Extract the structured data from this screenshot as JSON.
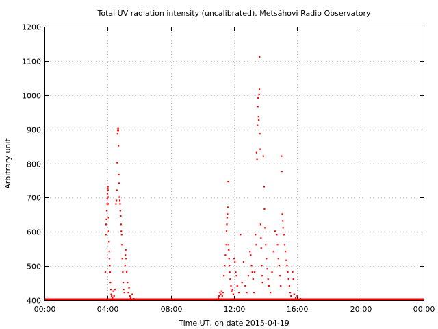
{
  "chart_data": {
    "type": "scatter",
    "title": "Total UV radiation intensity (uncalibrated). Metsähovi Radio Observatory",
    "xlabel": "Time UT, on date 2015-04-19",
    "ylabel": "Arbitrary unit",
    "xlim": [
      0,
      24
    ],
    "ylim": [
      400,
      1200
    ],
    "x_ticks": [
      {
        "value": 0,
        "label": "00:00"
      },
      {
        "value": 4,
        "label": "04:00"
      },
      {
        "value": 8,
        "label": "08:00"
      },
      {
        "value": 12,
        "label": "12:00"
      },
      {
        "value": 16,
        "label": "16:00"
      },
      {
        "value": 20,
        "label": "20:00"
      },
      {
        "value": 24,
        "label": "00:00"
      }
    ],
    "y_ticks": [
      400,
      500,
      600,
      700,
      800,
      900,
      1000,
      1100,
      1200
    ],
    "grid": true,
    "marker_color": "#ff0000",
    "baseline": {
      "value": 400,
      "from": 0,
      "to": 24
    },
    "points": [
      [
        3.85,
        480
      ],
      [
        3.88,
        590
      ],
      [
        3.9,
        620
      ],
      [
        3.92,
        635
      ],
      [
        3.94,
        660
      ],
      [
        3.96,
        680
      ],
      [
        3.97,
        695
      ],
      [
        3.98,
        710
      ],
      [
        4.0,
        725
      ],
      [
        4.01,
        730
      ],
      [
        4.02,
        720
      ],
      [
        4.03,
        700
      ],
      [
        4.04,
        680
      ],
      [
        4.05,
        640
      ],
      [
        4.06,
        600
      ],
      [
        4.08,
        570
      ],
      [
        4.1,
        540
      ],
      [
        4.11,
        520
      ],
      [
        4.13,
        500
      ],
      [
        4.15,
        480
      ],
      [
        4.17,
        450
      ],
      [
        4.2,
        430
      ],
      [
        4.22,
        415
      ],
      [
        4.25,
        410
      ],
      [
        4.3,
        405
      ],
      [
        4.35,
        425
      ],
      [
        4.4,
        410
      ],
      [
        4.45,
        430
      ],
      [
        4.52,
        680
      ],
      [
        4.55,
        690
      ],
      [
        4.58,
        720
      ],
      [
        4.6,
        800
      ],
      [
        4.62,
        885
      ],
      [
        4.64,
        895
      ],
      [
        4.65,
        900
      ],
      [
        4.66,
        900
      ],
      [
        4.67,
        895
      ],
      [
        4.68,
        850
      ],
      [
        4.7,
        765
      ],
      [
        4.72,
        740
      ],
      [
        4.74,
        700
      ],
      [
        4.76,
        690
      ],
      [
        4.78,
        680
      ],
      [
        4.8,
        660
      ],
      [
        4.82,
        645
      ],
      [
        4.84,
        620
      ],
      [
        4.86,
        600
      ],
      [
        4.88,
        590
      ],
      [
        4.9,
        560
      ],
      [
        4.92,
        520
      ],
      [
        4.95,
        480
      ],
      [
        4.98,
        450
      ],
      [
        5.0,
        430
      ],
      [
        5.05,
        420
      ],
      [
        5.1,
        500
      ],
      [
        5.12,
        530
      ],
      [
        5.14,
        545
      ],
      [
        5.16,
        520
      ],
      [
        5.2,
        480
      ],
      [
        5.25,
        450
      ],
      [
        5.3,
        420
      ],
      [
        5.35,
        435
      ],
      [
        5.4,
        410
      ],
      [
        5.45,
        405
      ],
      [
        5.55,
        415
      ],
      [
        5.65,
        402
      ],
      [
        11.0,
        405
      ],
      [
        11.05,
        410
      ],
      [
        11.1,
        420
      ],
      [
        11.15,
        415
      ],
      [
        11.2,
        425
      ],
      [
        11.25,
        410
      ],
      [
        11.3,
        420
      ],
      [
        11.35,
        470
      ],
      [
        11.4,
        500
      ],
      [
        11.45,
        530
      ],
      [
        11.5,
        560
      ],
      [
        11.52,
        600
      ],
      [
        11.54,
        620
      ],
      [
        11.56,
        640
      ],
      [
        11.58,
        650
      ],
      [
        11.6,
        670
      ],
      [
        11.62,
        745
      ],
      [
        11.64,
        560
      ],
      [
        11.66,
        545
      ],
      [
        11.68,
        520
      ],
      [
        11.7,
        500
      ],
      [
        11.72,
        480
      ],
      [
        11.75,
        460
      ],
      [
        11.8,
        440
      ],
      [
        11.85,
        425
      ],
      [
        11.9,
        430
      ],
      [
        11.95,
        415
      ],
      [
        12.0,
        520
      ],
      [
        12.05,
        510
      ],
      [
        12.1,
        480
      ],
      [
        12.15,
        470
      ],
      [
        12.2,
        440
      ],
      [
        12.3,
        420
      ],
      [
        12.4,
        590
      ],
      [
        12.5,
        450
      ],
      [
        12.6,
        510
      ],
      [
        12.7,
        440
      ],
      [
        12.8,
        420
      ],
      [
        12.9,
        470
      ],
      [
        13.0,
        540
      ],
      [
        13.05,
        530
      ],
      [
        13.1,
        500
      ],
      [
        13.15,
        480
      ],
      [
        13.2,
        460
      ],
      [
        13.25,
        420
      ],
      [
        13.3,
        480
      ],
      [
        13.35,
        590
      ],
      [
        13.4,
        560
      ],
      [
        13.42,
        830
      ],
      [
        13.45,
        810
      ],
      [
        13.48,
        910
      ],
      [
        13.5,
        965
      ],
      [
        13.52,
        990
      ],
      [
        13.54,
        935
      ],
      [
        13.56,
        925
      ],
      [
        13.58,
        1000
      ],
      [
        13.6,
        1015
      ],
      [
        13.61,
        1110
      ],
      [
        13.63,
        885
      ],
      [
        13.65,
        840
      ],
      [
        13.68,
        620
      ],
      [
        13.7,
        580
      ],
      [
        13.72,
        550
      ],
      [
        13.75,
        500
      ],
      [
        13.78,
        470
      ],
      [
        13.8,
        450
      ],
      [
        13.85,
        820
      ],
      [
        13.9,
        730
      ],
      [
        13.92,
        665
      ],
      [
        13.95,
        610
      ],
      [
        14.0,
        560
      ],
      [
        14.05,
        520
      ],
      [
        14.1,
        490
      ],
      [
        14.15,
        460
      ],
      [
        14.2,
        440
      ],
      [
        14.3,
        420
      ],
      [
        14.4,
        480
      ],
      [
        14.5,
        540
      ],
      [
        14.6,
        600
      ],
      [
        14.7,
        590
      ],
      [
        14.75,
        560
      ],
      [
        14.8,
        520
      ],
      [
        14.85,
        500
      ],
      [
        14.9,
        470
      ],
      [
        14.95,
        440
      ],
      [
        15.0,
        820
      ],
      [
        15.02,
        775
      ],
      [
        15.05,
        650
      ],
      [
        15.08,
        630
      ],
      [
        15.1,
        610
      ],
      [
        15.15,
        590
      ],
      [
        15.2,
        560
      ],
      [
        15.25,
        540
      ],
      [
        15.3,
        515
      ],
      [
        15.35,
        500
      ],
      [
        15.4,
        480
      ],
      [
        15.45,
        460
      ],
      [
        15.5,
        440
      ],
      [
        15.55,
        420
      ],
      [
        15.6,
        410
      ],
      [
        15.7,
        480
      ],
      [
        15.75,
        460
      ],
      [
        15.8,
        415
      ],
      [
        15.9,
        405
      ],
      [
        16.0,
        410
      ],
      [
        16.2,
        402
      ]
    ]
  }
}
